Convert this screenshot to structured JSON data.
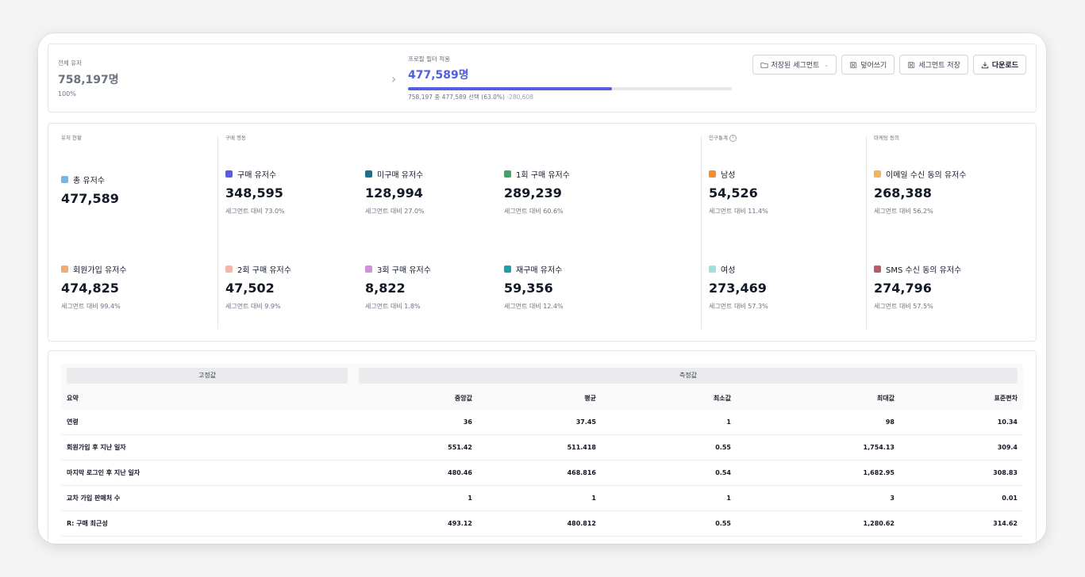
{
  "summary": {
    "total_label": "전체 유저",
    "total_value": "758,197명",
    "total_pct": "100%",
    "filter_label": "프로필 필터 적용",
    "filter_value": "477,589명",
    "progress": 0.63,
    "caption_main": "758,197 중 477,589 선택 (63.0%)",
    "caption_delta": "-280,608",
    "buttons": {
      "saved_segment": "저장된 세그먼트",
      "overwrite": "덮어쓰기",
      "save_segment": "세그먼트 저장",
      "download": "다운로드"
    }
  },
  "colors": {
    "accent": "#4f5fe0",
    "total_users": "#74b6e6",
    "signup_users": "#f7a96f",
    "buy_users": "#5c5ce0",
    "non_buy_users": "#1d6f8a",
    "once_buy": "#43a36f",
    "twice_buy": "#f6b6a8",
    "thrice_buy": "#cf91da",
    "rebuy": "#17a2a8",
    "male": "#f58d2b",
    "female": "#9ae3dd",
    "email_consent": "#f5b45a",
    "sms_consent": "#b85a6a"
  },
  "stats": {
    "user_status_title": "유저 현황",
    "purchase_title": "구매 행동",
    "demo_title": "인구통계",
    "marketing_title": "마케팅 동의",
    "items": {
      "total": {
        "label": "총 유저수",
        "value": "477,589"
      },
      "signup": {
        "label": "회원가입 유저수",
        "value": "474,825",
        "sub": "세그먼트 대비 99.4%"
      },
      "buy": {
        "label": "구매 유저수",
        "value": "348,595",
        "sub": "세그먼트 대비 73.0%"
      },
      "nonbuy": {
        "label": "미구매 유저수",
        "value": "128,994",
        "sub": "세그먼트 대비 27.0%"
      },
      "once": {
        "label": "1회 구매 유저수",
        "value": "289,239",
        "sub": "세그먼트 대비 60.6%"
      },
      "twice": {
        "label": "2회 구매 유저수",
        "value": "47,502",
        "sub": "세그먼트 대비 9.9%"
      },
      "thrice": {
        "label": "3회 구매 유저수",
        "value": "8,822",
        "sub": "세그먼트 대비 1.8%"
      },
      "rebuy": {
        "label": "재구매 유저수",
        "value": "59,356",
        "sub": "세그먼트 대비 12.4%"
      },
      "male": {
        "label": "남성",
        "value": "54,526",
        "sub": "세그먼트 대비 11.4%"
      },
      "female": {
        "label": "여성",
        "value": "273,469",
        "sub": "세그먼트 대비 57.3%"
      },
      "email": {
        "label": "이메일 수신 동의 유저수",
        "value": "268,388",
        "sub": "세그먼트 대비 56.2%"
      },
      "sms": {
        "label": "SMS 수신 동의 유저수",
        "value": "274,796",
        "sub": "세그먼트 대비 57.5%"
      }
    }
  },
  "table": {
    "group_fixed": "고정값",
    "group_measured": "측정값",
    "headers": [
      "요약",
      "중앙값",
      "평균",
      "최소값",
      "최대값",
      "표준편차"
    ],
    "rows": [
      [
        "연령",
        "36",
        "37.45",
        "1",
        "98",
        "10.34"
      ],
      [
        "회원가입 후 지난 일자",
        "551.42",
        "511.418",
        "0.55",
        "1,754.13",
        "309.4"
      ],
      [
        "마지막 로그인 후 지난 일자",
        "480.46",
        "468.816",
        "0.54",
        "1,682.95",
        "308.83"
      ],
      [
        "교차 가입 판매처 수",
        "1",
        "1",
        "1",
        "3",
        "0.01"
      ],
      [
        "R: 구매 최근성",
        "493.12",
        "480.812",
        "0.55",
        "1,280.62",
        "314.62"
      ]
    ]
  }
}
